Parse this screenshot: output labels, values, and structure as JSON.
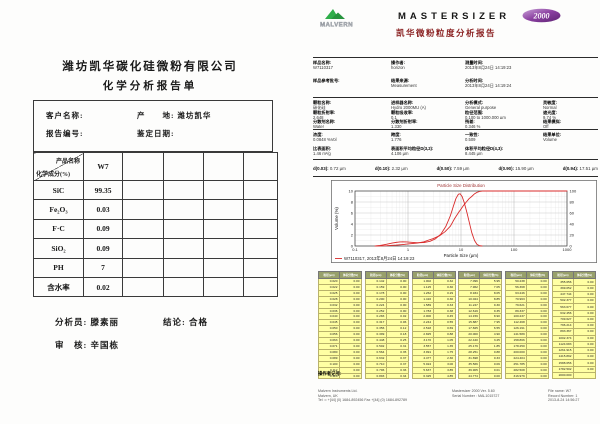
{
  "left_report": {
    "company_title": "潍坊凯华碳化硅微粉有限公司",
    "report_title": "化学分析报告单",
    "info": {
      "customer_label": "客户名称:",
      "origin_label": "产　　地: 潍坊凯华",
      "report_no_label": "报告编号:",
      "date_label": "鉴定日期:"
    },
    "table": {
      "diagonal_top": "产品名称",
      "diagonal_bottom": "化学成分(%)",
      "product": "W7",
      "empty_cols": 4,
      "rows": [
        {
          "name": "SiC",
          "value": "99.35"
        },
        {
          "name": "Fe₂O₃",
          "value": "0.03"
        },
        {
          "name": "F·C",
          "value": "0.09"
        },
        {
          "name": "SiO₂",
          "value": "0.09"
        },
        {
          "name": "PH",
          "value": "7"
        },
        {
          "name": "含水率",
          "value": "0.02"
        }
      ]
    },
    "signatures": {
      "analyst": "分析员: 滕素丽",
      "conclusion": "结论: 合格",
      "reviewer": "审　核: 辛国栋"
    }
  },
  "right_report": {
    "brand": {
      "malvern": "MALVERN",
      "mastersizer": "MASTERSIZER",
      "model": "2000",
      "report_title": "凯华微粉粒度分析报告",
      "title_color": "#8b2222",
      "malvern_green": "#2fae4a",
      "oval_purple": "#7a2f92"
    },
    "sample_info": [
      {
        "label": "样品名称:",
        "value": "W7110317"
      },
      {
        "label": "操作者:",
        "value": "horizon"
      },
      {
        "label": "测量时间:",
        "value": "2013年8月24日 14:19:23"
      },
      {
        "label": "样品参考批号:",
        "value": ""
      },
      {
        "label": "结果来源:",
        "value": "Measurement"
      },
      {
        "label": "分析时间:",
        "value": "2013年8月24日 14:19:24"
      }
    ],
    "measurement_info": [
      {
        "label": "颗粒名称:",
        "value": "碳化硅"
      },
      {
        "label": "进样器名称:",
        "value": "Hydro 2000MU (A)"
      },
      {
        "label": "分析模式:",
        "value": "General purpose"
      },
      {
        "label": "灵敏度:",
        "value": "Normal"
      },
      {
        "label": "颗粒折射率:",
        "value": "2.648"
      },
      {
        "label": "颗粒吸收率:",
        "value": "0.1"
      },
      {
        "label": "粒径范围:",
        "value": "0.100 to 1000.000 µm"
      },
      {
        "label": "遮光度:",
        "value": "9.74 %"
      },
      {
        "label": "分散剂名称:",
        "value": "Water"
      },
      {
        "label": "分散剂折射率:",
        "value": "1.330"
      },
      {
        "label": "残差:",
        "value": "0.346 %"
      },
      {
        "label": "结果模拟:",
        "value": "Off"
      }
    ],
    "result_info": [
      {
        "label": "浓度:",
        "value": "0.0848 %Vol"
      },
      {
        "label": "跨度:",
        "value": "1.776"
      },
      {
        "label": "一致性:",
        "value": "0.509"
      },
      {
        "label": "结果单位:",
        "value": "Volume"
      },
      {
        "label": "比表面积:",
        "value": "1.46 m²/g"
      },
      {
        "label": "表面积平均粒径D(3,2):",
        "value": "4.106 µm"
      },
      {
        "label": "体积平均粒径D(4,3):",
        "value": "8.445 µm"
      },
      {
        "label": "",
        "value": ""
      }
    ],
    "percentiles": [
      {
        "label": "d(0.03):",
        "value": "0.72 µm"
      },
      {
        "label": "d(0.10):",
        "value": "2.32 µm"
      },
      {
        "label": "d(0.50):",
        "value": "7.59 µm"
      },
      {
        "label": "d(0.90):",
        "value": "15.90 µm"
      },
      {
        "label": "d(0.94):",
        "value": "17.51 µm"
      }
    ],
    "size_table": {
      "size_header": "粒径(µm)",
      "volume_header": "体积分数(%)",
      "columns": 6,
      "rows_per_column": 17,
      "sizes": [
        "0.020",
        "0.022",
        "0.025",
        "0.028",
        "0.032",
        "0.036",
        "0.040",
        "0.045",
        "0.050",
        "0.056",
        "0.063",
        "0.071",
        "0.080",
        "0.089",
        "0.100",
        "0.112",
        "0.126",
        "0.142",
        "0.159",
        "0.178",
        "0.200",
        "0.224",
        "0.252",
        "0.283",
        "0.317",
        "0.356",
        "0.399",
        "0.448",
        "0.502",
        "0.564",
        "0.632",
        "0.710",
        "0.796",
        "0.893",
        "1.002",
        "1.125",
        "1.262",
        "1.416",
        "1.589",
        "1.783",
        "2.000",
        "2.244",
        "2.518",
        "2.825",
        "3.170",
        "3.557",
        "3.991",
        "4.477",
        "5.024",
        "5.637",
        "6.325",
        "7.096",
        "7.962",
        "8.934",
        "10.024",
        "11.247",
        "12.619",
        "14.159",
        "15.887",
        "17.825",
        "20.000",
        "22.440",
        "25.179",
        "28.251",
        "31.698",
        "35.566",
        "39.905",
        "44.774",
        "50.238",
        "56.368",
        "63.246",
        "70.963",
        "79.621",
        "89.337",
        "100.237",
        "112.468",
        "126.191",
        "141.589",
        "158.866",
        "178.250",
        "200.000",
        "224.404",
        "251.785",
        "282.508",
        "316.979",
        "355.656",
        "399.052",
        "447.744",
        "502.377",
        "563.677",
        "632.456",
        "709.627",
        "796.214",
        "893.367",
        "1002.374",
        "1124.683",
        "1261.915",
        "1415.892",
        "1588.656",
        "1782.502",
        "2000.000"
      ],
      "volumes": [
        "0.00",
        "0.00",
        "0.00",
        "0.00",
        "0.00",
        "0.00",
        "0.00",
        "0.00",
        "0.00",
        "0.00",
        "0.00",
        "0.00",
        "0.00",
        "0.00",
        "0.00",
        "0.00",
        "0.00",
        "0.00",
        "0.00",
        "0.00",
        "0.00",
        "0.00",
        "0.00",
        "0.02",
        "0.06",
        "0.12",
        "0.18",
        "0.25",
        "0.31",
        "0.35",
        "0.37",
        "0.37",
        "0.36",
        "0.34",
        "0.32",
        "0.30",
        "0.29",
        "0.30",
        "0.33",
        "0.38",
        "0.45",
        "0.55",
        "0.69",
        "0.88",
        "1.05",
        "1.35",
        "1.75",
        "2.30",
        "3.00",
        "3.85",
        "4.85",
        "5.95",
        "7.05",
        "8.05",
        "8.85",
        "9.30",
        "9.35",
        "8.90",
        "7.95",
        "6.55",
        "4.90",
        "3.25",
        "1.85",
        "0.88",
        "0.33",
        "0.09",
        "0.01",
        "0.00",
        "0.00",
        "0.00",
        "0.00",
        "0.00",
        "0.00",
        "0.00",
        "0.00",
        "0.00",
        "0.00",
        "0.00",
        "0.00",
        "0.00",
        "0.00",
        "0.00",
        "0.00",
        "0.00",
        "0.00",
        "0.00",
        "0.00",
        "0.00",
        "0.00",
        "0.00",
        "0.00",
        "0.00",
        "0.00",
        "0.00",
        "0.00",
        "0.00",
        "0.00",
        "0.00",
        "0.00",
        "0.00"
      ]
    },
    "operator_note_label": "操作者记号:",
    "footer": {
      "address": [
        "Malvern Instruments Ltd.",
        "Malvern, UK",
        "Tel := +[44] (0) 1684-892456 Fax +[44] (0) 1684-892789"
      ],
      "version": [
        "Mastersizer 2000 Ver. 5.60",
        "Serial Number : MAL1015727"
      ],
      "file": [
        "File name: W7",
        "Record Number: 1",
        "2013-8-24 14:56:27"
      ]
    }
  },
  "chart_data": {
    "type": "line",
    "title": "Particle Size Distribution",
    "xlabel": "Particle Size (µm)",
    "ylabel": "Volume (%)",
    "x_scale": "log",
    "xlim": [
      0.1,
      1000
    ],
    "ylim_left": [
      0,
      10
    ],
    "ylim_right": [
      0,
      100
    ],
    "x_ticks": [
      "0.1",
      "1",
      "10",
      "100",
      "1000"
    ],
    "y_ticks_left": [
      "0",
      "2",
      "4",
      "6",
      "8",
      "10"
    ],
    "y_ticks_right": [
      "0",
      "20",
      "40",
      "60",
      "80",
      "100"
    ],
    "grid": true,
    "legend_position": "bottom-left",
    "legend": "W7110317, 2013年8月24日 14:19:23",
    "series": [
      {
        "name": "volume-frequency",
        "axis": "left",
        "color": "#d92b2b",
        "points": [
          [
            0.24,
            0
          ],
          [
            0.3,
            0.1
          ],
          [
            0.4,
            0.33
          ],
          [
            0.5,
            0.53
          ],
          [
            0.6,
            0.66
          ],
          [
            0.7,
            0.74
          ],
          [
            0.8,
            0.76
          ],
          [
            0.95,
            0.73
          ],
          [
            1.15,
            0.67
          ],
          [
            1.45,
            0.61
          ],
          [
            1.75,
            0.6
          ],
          [
            2.1,
            0.66
          ],
          [
            2.6,
            0.85
          ],
          [
            3.3,
            1.3
          ],
          [
            4.2,
            2.2
          ],
          [
            5.2,
            3.6
          ],
          [
            6.3,
            5.5
          ],
          [
            7.1,
            7.1
          ],
          [
            8.0,
            8.6
          ],
          [
            8.9,
            9.4
          ],
          [
            9.6,
            9.5
          ],
          [
            10.5,
            9.0
          ],
          [
            11.5,
            7.9
          ],
          [
            13.0,
            6.0
          ],
          [
            14.5,
            4.1
          ],
          [
            16.0,
            2.4
          ],
          [
            18.0,
            1.0
          ],
          [
            20.0,
            0.3
          ],
          [
            22.5,
            0.05
          ],
          [
            25.0,
            0
          ]
        ]
      },
      {
        "name": "cumulative-volume",
        "axis": "right",
        "color": "#d92b2b",
        "points": [
          [
            0.24,
            0
          ],
          [
            0.4,
            0.6
          ],
          [
            0.6,
            1.6
          ],
          [
            0.8,
            2.7
          ],
          [
            1.0,
            3.7
          ],
          [
            1.5,
            5.4
          ],
          [
            2.0,
            7.6
          ],
          [
            2.32,
            10
          ],
          [
            3.0,
            13.5
          ],
          [
            4.0,
            19
          ],
          [
            5.0,
            26
          ],
          [
            6.3,
            36
          ],
          [
            7.59,
            50
          ],
          [
            9.0,
            61
          ],
          [
            10,
            67
          ],
          [
            11.2,
            74
          ],
          [
            12.6,
            80
          ],
          [
            14.2,
            86
          ],
          [
            15.9,
            90
          ],
          [
            17.8,
            94.5
          ],
          [
            20,
            97.5
          ],
          [
            22.4,
            99.2
          ],
          [
            25.2,
            99.9
          ],
          [
            28,
            100
          ],
          [
            1000,
            100
          ]
        ]
      }
    ]
  }
}
